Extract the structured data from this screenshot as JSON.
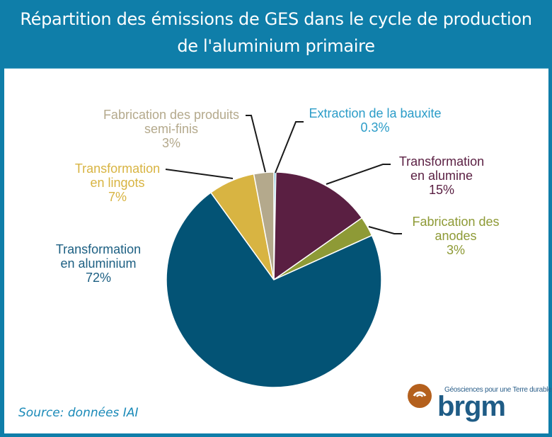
{
  "header": {
    "title_line1": "Répartition des émissions de GES dans le cycle de production",
    "title_line2": "de l'aluminium primaire"
  },
  "footer": {
    "source": "Source: données IAI",
    "logo_text": "brgm",
    "logo_tagline": "Géosciences pour une Terre durable"
  },
  "colors": {
    "frame": "#0f7ea9",
    "bauxite": "#5fb4d6",
    "alumine": "#5a1f42",
    "anodes": "#8e9a36",
    "aluminium": "#035375",
    "lingots": "#d8b442",
    "semi_finis": "#b4a98c"
  },
  "labels": {
    "bauxite": {
      "line1": "Extraction de la bauxite",
      "pct": "0.3%"
    },
    "alumine": {
      "line1": "Transformation",
      "line2": "en alumine",
      "pct": "15%"
    },
    "anodes": {
      "line1": "Fabrication des",
      "line2": "anodes",
      "pct": "3%"
    },
    "aluminium": {
      "line1": "Transformation",
      "line2": "en aluminium",
      "pct": "72%"
    },
    "lingots": {
      "line1": "Transformation",
      "line2": "en lingots",
      "pct": "7%"
    },
    "semi_finis": {
      "line1": "Fabrication des produits",
      "line2": "semi-finis",
      "pct": "3%"
    }
  },
  "chart_data": {
    "type": "pie",
    "title": "Répartition des émissions de GES dans le cycle de production de l'aluminium primaire",
    "start_angle": "12 o'clock, clockwise",
    "categories": [
      "Extraction de la bauxite",
      "Transformation en alumine",
      "Fabrication des anodes",
      "Transformation en aluminium",
      "Transformation en lingots",
      "Fabrication des produits semi-finis"
    ],
    "values": [
      0.3,
      15,
      3,
      72,
      7,
      3
    ],
    "unit": "%",
    "colors": [
      "#5fb4d6",
      "#5a1f42",
      "#8e9a36",
      "#035375",
      "#d8b442",
      "#b4a98c"
    ],
    "labels_outside_with_leader_lines": true,
    "source": "Source: données IAI"
  }
}
